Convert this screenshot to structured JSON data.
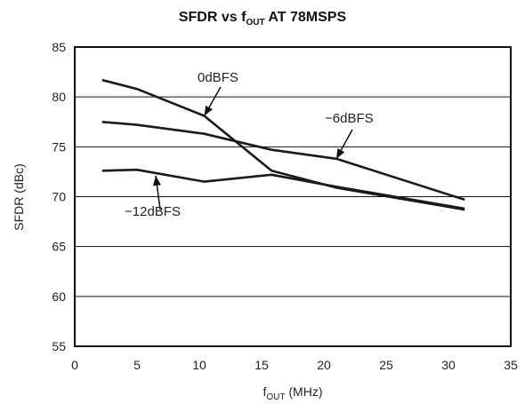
{
  "chart_data": {
    "type": "line",
    "title_main": "SFDR vs f",
    "title_sub": "OUT",
    "title_tail": " AT 78MSPS",
    "xlabel_main": "f",
    "xlabel_sub": "OUT",
    "xlabel_tail": " (MHz)",
    "ylabel": "SFDR (dBc)",
    "xlim": [
      0,
      35
    ],
    "ylim": [
      55,
      85
    ],
    "xticks": [
      0,
      5,
      10,
      15,
      20,
      25,
      30,
      35
    ],
    "yticks": [
      55,
      60,
      65,
      70,
      75,
      80,
      85
    ],
    "grid": true,
    "series": [
      {
        "name": "0dBFS",
        "x": [
          2.2,
          5,
          10.4,
          15.8,
          21,
          31.3
        ],
        "y": [
          81.7,
          80.8,
          78.1,
          72.6,
          70.9,
          68.7
        ]
      },
      {
        "name": "−6dBFS",
        "x": [
          2.2,
          5,
          10.4,
          15.8,
          21,
          31.3
        ],
        "y": [
          77.5,
          77.2,
          76.3,
          74.7,
          73.8,
          69.7
        ]
      },
      {
        "name": "−12dBFS",
        "x": [
          2.2,
          5,
          10.4,
          15.8,
          21,
          31.3
        ],
        "y": [
          72.6,
          72.7,
          71.5,
          72.2,
          71.0,
          68.8
        ]
      }
    ],
    "annotations": [
      {
        "text": "0dBFS",
        "series": 0,
        "target": [
          10.4,
          78.1
        ]
      },
      {
        "text": "−6dBFS",
        "series": 1,
        "target": [
          21,
          73.8
        ]
      },
      {
        "text": "−12dBFS",
        "series": 2,
        "target": [
          6.5,
          72.1
        ]
      }
    ]
  }
}
